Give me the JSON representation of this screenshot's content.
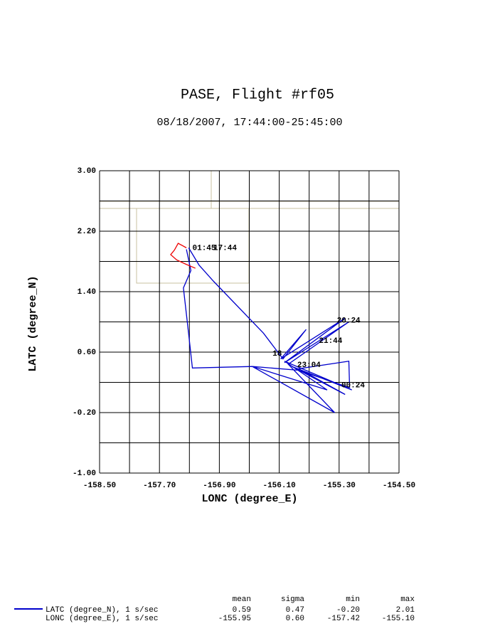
{
  "chart_data": {
    "type": "line",
    "title": "PASE, Flight #rf05",
    "subtitle": "08/18/2007, 17:44:00-25:45:00",
    "x_label": "LONC (degree_E)",
    "y_label": "LATC (degree_N)",
    "xlim": [
      -158.5,
      -154.5
    ],
    "ylim": [
      -1,
      3
    ],
    "grid": true,
    "xticks": [
      {
        "value": -158.5,
        "label": "-158.50"
      },
      {
        "value": -158.1,
        "label": null
      },
      {
        "value": -157.7,
        "label": "-157.70"
      },
      {
        "value": -157.3,
        "label": null
      },
      {
        "value": -156.9,
        "label": "-156.90"
      },
      {
        "value": -156.5,
        "label": null
      },
      {
        "value": -156.1,
        "label": "-156.10"
      },
      {
        "value": -155.7,
        "label": null
      },
      {
        "value": -155.3,
        "label": "-155.30"
      },
      {
        "value": -154.9,
        "label": null
      },
      {
        "value": -154.5,
        "label": "-154.50"
      }
    ],
    "yticks": [
      {
        "value": -1,
        "label": "-1.00"
      },
      {
        "value": -0.6,
        "label": null
      },
      {
        "value": -0.2,
        "label": "-0.20"
      },
      {
        "value": 0.2,
        "label": null
      },
      {
        "value": 0.6,
        "label": "0.60"
      },
      {
        "value": 1,
        "label": null
      },
      {
        "value": 1.4,
        "label": "1.40"
      },
      {
        "value": 1.8,
        "label": null
      },
      {
        "value": 2.2,
        "label": "2.20"
      },
      {
        "value": 2.6,
        "label": null
      },
      {
        "value": 3,
        "label": "3.00"
      }
    ],
    "series": [
      {
        "color": "#0000cc",
        "x": [
          -157.31,
          -157.17,
          -156.98,
          -156.31,
          -156.05,
          -155.74,
          -156.08,
          -155.22,
          -156.03,
          -155.17,
          -155.98,
          -155.36,
          -156.46,
          -155.46,
          -156.03,
          -155.13,
          -155.93,
          -155.22,
          -155.84,
          -155.17,
          -155.16,
          -155.84,
          -156.46,
          -157.26,
          -157.31,
          -157.38,
          -157.28,
          -157.34
        ],
        "values": [
          1.98,
          1.75,
          1.54,
          0.85,
          0.51,
          0.9,
          0.51,
          1.05,
          0.46,
          1,
          0.44,
          -0.2,
          0.41,
          0.1,
          0.48,
          0.1,
          0.41,
          0.04,
          0.38,
          0.48,
          0.13,
          0.36,
          0.41,
          0.39,
          0.84,
          1.45,
          1.68,
          1.96
        ]
      },
      {
        "color": "#ee0000",
        "x": [
          -157.34,
          -157.45,
          -157.5,
          -157.55,
          -157.47,
          -157.34,
          -157.22
        ],
        "values": [
          1.98,
          2.04,
          1.95,
          1.89,
          1.82,
          1.76,
          1.71
        ]
      }
    ],
    "annotations": [
      {
        "text": "01:45",
        "x": -157.26,
        "y": 1.98
      },
      {
        "text": "17:44",
        "x": -156.98,
        "y": 1.98
      },
      {
        "text": "20:24",
        "x": -155.33,
        "y": 1.02
      },
      {
        "text": "21:44",
        "x": -155.57,
        "y": 0.75
      },
      {
        "text": "18",
        "x": -156.19,
        "y": 0.58
      },
      {
        "text": "23:04",
        "x": -155.86,
        "y": 0.43
      },
      {
        "text": "00:24",
        "x": -155.27,
        "y": 0.16
      }
    ],
    "stats": {
      "columns": [
        "mean",
        "sigma",
        "min",
        "max"
      ],
      "rows": [
        {
          "label": "LATC (degree_N), 1 s/sec",
          "values": [
            "0.59",
            "0.47",
            "-0.20",
            "2.01"
          ]
        },
        {
          "label": "LONC (degree_E), 1 s/sec",
          "values": [
            "-155.95",
            "0.60",
            "-157.42",
            "-155.10"
          ]
        }
      ]
    }
  }
}
